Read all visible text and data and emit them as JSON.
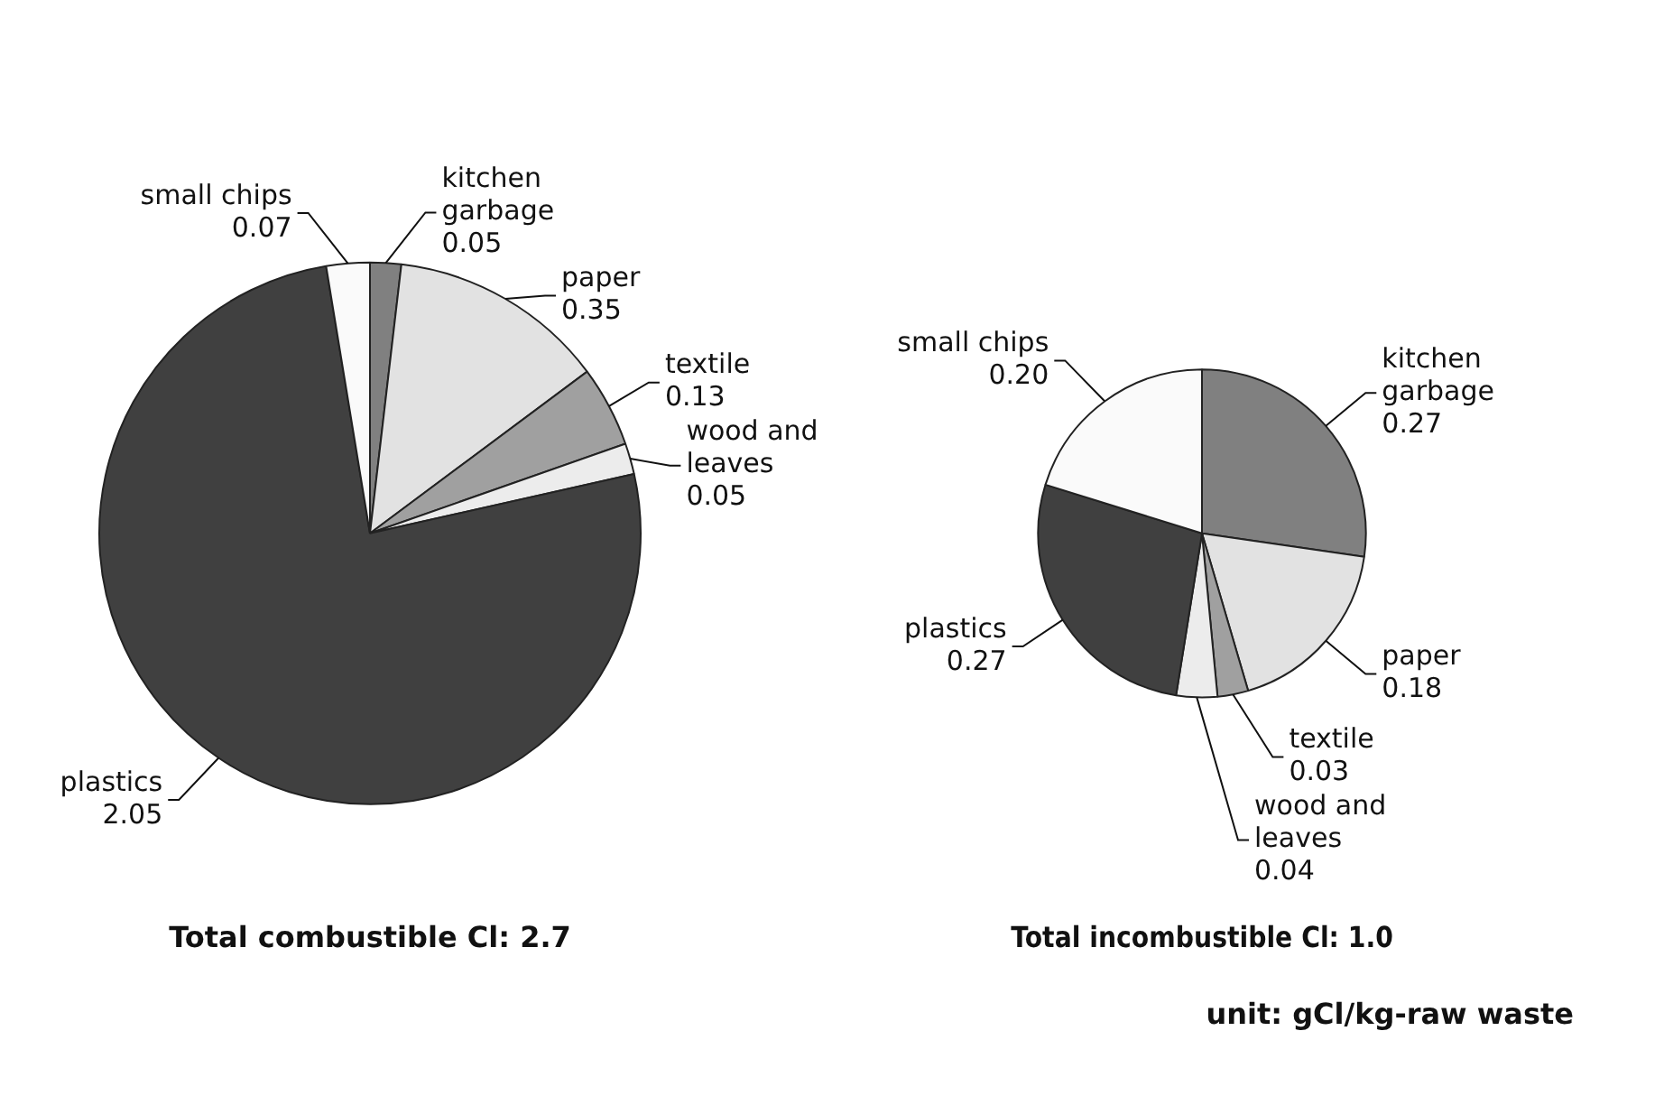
{
  "chart_data": [
    {
      "type": "pie",
      "title": "Total combustible Cl: 2.7",
      "categories": [
        "kitchen garbage",
        "paper",
        "textile",
        "wood and leaves",
        "plastics",
        "small chips"
      ],
      "values": [
        0.05,
        0.35,
        0.13,
        0.05,
        2.05,
        0.07
      ],
      "value_labels": [
        "0.05",
        "0.35",
        "0.13",
        "0.05",
        "2.05",
        "0.07"
      ],
      "colors": [
        "#808080",
        "#e2e2e2",
        "#a0a0a0",
        "#ececec",
        "#404040",
        "#fafafa"
      ]
    },
    {
      "type": "pie",
      "title": "Total incombustible Cl: 1.0",
      "categories": [
        "kitchen garbage",
        "paper",
        "textile",
        "wood and leaves",
        "plastics",
        "small chips"
      ],
      "values": [
        0.27,
        0.18,
        0.03,
        0.04,
        0.27,
        0.2
      ],
      "value_labels": [
        "0.27",
        "0.18",
        "0.03",
        "0.04",
        "0.27",
        "0.20"
      ],
      "colors": [
        "#808080",
        "#e2e2e2",
        "#a0a0a0",
        "#ececec",
        "#404040",
        "#fafafa"
      ],
      "annotations": [
        "unit: gCl/kg-raw waste"
      ]
    }
  ]
}
